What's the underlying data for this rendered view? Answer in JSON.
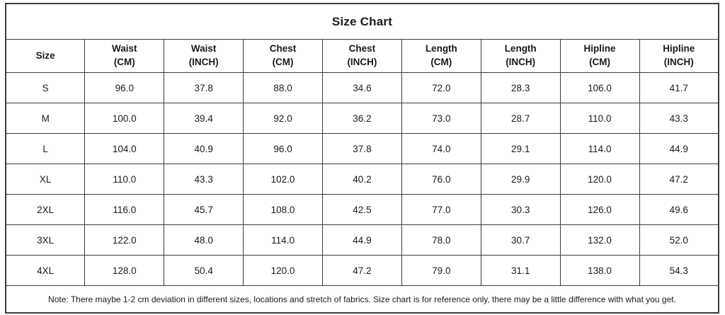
{
  "title": "Size Chart",
  "note": "Note: There maybe 1-2 cm deviation in different sizes, locations and stretch of fabrics. Size chart is for reference only, there may be a little difference with what you get.",
  "colors": {
    "border": "#3c3c3c",
    "text": "#1a1a1a",
    "background": "#ffffff"
  },
  "chart_data": {
    "type": "table",
    "title": "Size Chart",
    "columns": [
      "Size",
      "Waist\n(CM)",
      "Waist\n(INCH)",
      "Chest\n(CM)",
      "Chest\n(INCH)",
      "Length\n(CM)",
      "Length\n(INCH)",
      "Hipline\n(CM)",
      "Hipline\n(INCH)"
    ],
    "rows": [
      {
        "size": "S",
        "values": [
          "96.0",
          "37.8",
          "88.0",
          "34.6",
          "72.0",
          "28.3",
          "106.0",
          "41.7"
        ]
      },
      {
        "size": "M",
        "values": [
          "100.0",
          "39.4",
          "92.0",
          "36.2",
          "73.0",
          "28.7",
          "110.0",
          "43.3"
        ]
      },
      {
        "size": "L",
        "values": [
          "104.0",
          "40.9",
          "96.0",
          "37.8",
          "74.0",
          "29.1",
          "114.0",
          "44.9"
        ]
      },
      {
        "size": "XL",
        "values": [
          "110.0",
          "43.3",
          "102.0",
          "40.2",
          "76.0",
          "29.9",
          "120.0",
          "47.2"
        ]
      },
      {
        "size": "2XL",
        "values": [
          "116.0",
          "45.7",
          "108.0",
          "42.5",
          "77.0",
          "30.3",
          "126.0",
          "49.6"
        ]
      },
      {
        "size": "3XL",
        "values": [
          "122.0",
          "48.0",
          "114.0",
          "44.9",
          "78.0",
          "30.7",
          "132.0",
          "52.0"
        ]
      },
      {
        "size": "4XL",
        "values": [
          "128.0",
          "50.4",
          "120.0",
          "47.2",
          "79.0",
          "31.1",
          "138.0",
          "54.3"
        ]
      }
    ],
    "footer_note": "Note: There maybe 1-2 cm deviation in different sizes, locations and stretch of fabrics. Size chart is for reference only, there may be a little difference with what you get."
  }
}
